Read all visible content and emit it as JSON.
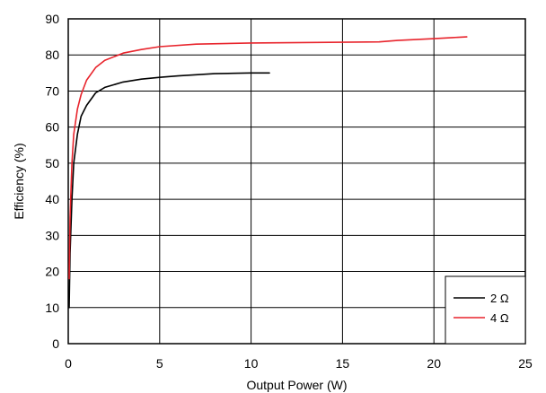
{
  "chart_data": {
    "type": "line",
    "title": "",
    "xlabel": "Output Power (W)",
    "ylabel": "Efficiency (%)",
    "xlim": [
      0,
      25
    ],
    "ylim": [
      0,
      90
    ],
    "x_ticks": [
      "0",
      "5",
      "10",
      "15",
      "20",
      "25"
    ],
    "y_ticks": [
      "0",
      "10",
      "20",
      "30",
      "40",
      "50",
      "60",
      "70",
      "80",
      "90"
    ],
    "grid": true,
    "legend_position": "bottom-right",
    "series": [
      {
        "name": "2 Ω",
        "color": "#000000",
        "points": [
          [
            0.05,
            10
          ],
          [
            0.1,
            25
          ],
          [
            0.2,
            40
          ],
          [
            0.3,
            50
          ],
          [
            0.5,
            58
          ],
          [
            0.7,
            63
          ],
          [
            1.0,
            66
          ],
          [
            1.5,
            69.5
          ],
          [
            2.0,
            71
          ],
          [
            3.0,
            72.5
          ],
          [
            4.0,
            73.3
          ],
          [
            5.0,
            73.8
          ],
          [
            6.0,
            74.2
          ],
          [
            7.0,
            74.5
          ],
          [
            8.0,
            74.8
          ],
          [
            9.0,
            74.9
          ],
          [
            10.0,
            75.0
          ],
          [
            11.0,
            75.0
          ]
        ]
      },
      {
        "name": "4 Ω",
        "color": "#e8242c",
        "points": [
          [
            0.05,
            18
          ],
          [
            0.1,
            35
          ],
          [
            0.2,
            50
          ],
          [
            0.3,
            58
          ],
          [
            0.5,
            65
          ],
          [
            0.7,
            69
          ],
          [
            1.0,
            73
          ],
          [
            1.5,
            76.5
          ],
          [
            2.0,
            78.5
          ],
          [
            3.0,
            80.5
          ],
          [
            4.0,
            81.5
          ],
          [
            5.0,
            82.3
          ],
          [
            7.0,
            83
          ],
          [
            10.0,
            83.3
          ],
          [
            15.0,
            83.5
          ],
          [
            17.0,
            83.6
          ],
          [
            18.0,
            84
          ],
          [
            20.0,
            84.5
          ],
          [
            21.0,
            84.8
          ],
          [
            21.8,
            85
          ]
        ]
      }
    ]
  }
}
